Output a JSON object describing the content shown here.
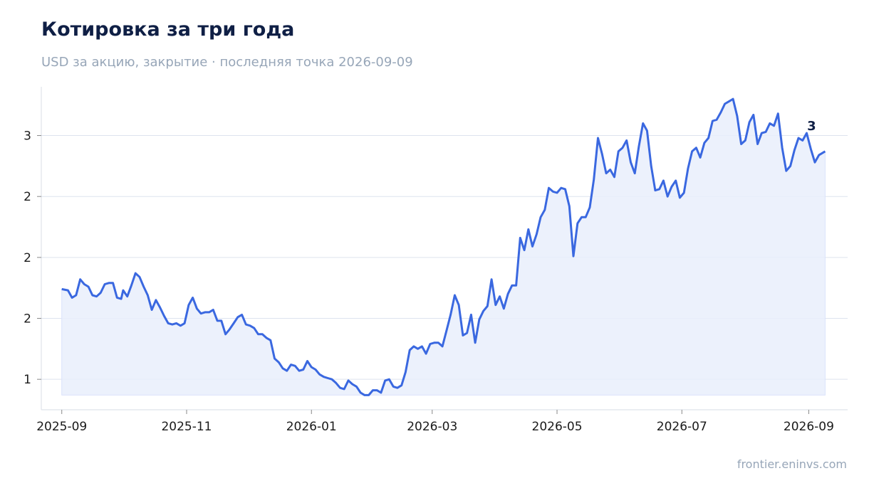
{
  "header": {
    "title": "Котировка за три года",
    "subtitle": "USD за акцию, закрытие · последняя точка 2026-09-09"
  },
  "footer": {
    "source": "frontier.eninvs.com"
  },
  "colors": {
    "line": "#3a68e0",
    "fill": "#e9eefc",
    "grid": "#dde3ee",
    "axis": "#dfe3ea",
    "text": "#1a1a1a"
  },
  "chart_data": {
    "type": "area",
    "title": "Котировка за три года",
    "subtitle": "USD за акцию, закрытие · последняя точка 2026-09-09",
    "xlabel": "",
    "ylabel": "",
    "grid": true,
    "legend": "none",
    "x_ticks": [
      "2025-09",
      "2025-11",
      "2026-01",
      "2026-03",
      "2026-05",
      "2026-07",
      "2026-09"
    ],
    "y_ticks": [
      {
        "value": 1.0,
        "label": "1"
      },
      {
        "value": 1.5,
        "label": "2"
      },
      {
        "value": 2.0,
        "label": "2"
      },
      {
        "value": 2.5,
        "label": "2"
      },
      {
        "value": 3.0,
        "label": "3"
      }
    ],
    "ylim": [
      0.75,
      3.4
    ],
    "xlim": [
      "2025-08-22",
      "2026-09-20"
    ],
    "end_label": "3",
    "series": [
      {
        "points": [
          [
            "2025-09-01",
            1.74
          ],
          [
            "2025-09-04",
            1.73
          ],
          [
            "2025-09-06",
            1.67
          ],
          [
            "2025-09-08",
            1.69
          ],
          [
            "2025-09-10",
            1.82
          ],
          [
            "2025-09-12",
            1.78
          ],
          [
            "2025-09-14",
            1.76
          ],
          [
            "2025-09-16",
            1.69
          ],
          [
            "2025-09-18",
            1.68
          ],
          [
            "2025-09-20",
            1.71
          ],
          [
            "2025-09-22",
            1.78
          ],
          [
            "2025-09-24",
            1.79
          ],
          [
            "2025-09-26",
            1.79
          ],
          [
            "2025-09-28",
            1.67
          ],
          [
            "2025-09-30",
            1.66
          ],
          [
            "2025-10-01",
            1.73
          ],
          [
            "2025-10-03",
            1.68
          ],
          [
            "2025-10-05",
            1.77
          ],
          [
            "2025-10-07",
            1.87
          ],
          [
            "2025-10-09",
            1.84
          ],
          [
            "2025-10-11",
            1.76
          ],
          [
            "2025-10-13",
            1.69
          ],
          [
            "2025-10-15",
            1.57
          ],
          [
            "2025-10-17",
            1.65
          ],
          [
            "2025-10-19",
            1.59
          ],
          [
            "2025-10-21",
            1.52
          ],
          [
            "2025-10-23",
            1.46
          ],
          [
            "2025-10-25",
            1.45
          ],
          [
            "2025-10-27",
            1.46
          ],
          [
            "2025-10-29",
            1.44
          ],
          [
            "2025-10-31",
            1.46
          ],
          [
            "2025-11-02",
            1.61
          ],
          [
            "2025-11-04",
            1.67
          ],
          [
            "2025-11-06",
            1.58
          ],
          [
            "2025-11-08",
            1.54
          ],
          [
            "2025-11-10",
            1.55
          ],
          [
            "2025-11-12",
            1.55
          ],
          [
            "2025-11-14",
            1.57
          ],
          [
            "2025-11-16",
            1.48
          ],
          [
            "2025-11-18",
            1.48
          ],
          [
            "2025-11-20",
            1.37
          ],
          [
            "2025-11-22",
            1.41
          ],
          [
            "2025-11-24",
            1.46
          ],
          [
            "2025-11-26",
            1.51
          ],
          [
            "2025-11-28",
            1.53
          ],
          [
            "2025-11-30",
            1.45
          ],
          [
            "2025-12-02",
            1.44
          ],
          [
            "2025-12-04",
            1.42
          ],
          [
            "2025-12-06",
            1.37
          ],
          [
            "2025-12-08",
            1.37
          ],
          [
            "2025-12-10",
            1.34
          ],
          [
            "2025-12-12",
            1.32
          ],
          [
            "2025-12-14",
            1.17
          ],
          [
            "2025-12-16",
            1.14
          ],
          [
            "2025-12-18",
            1.09
          ],
          [
            "2025-12-20",
            1.07
          ],
          [
            "2025-12-22",
            1.12
          ],
          [
            "2025-12-24",
            1.11
          ],
          [
            "2025-12-26",
            1.07
          ],
          [
            "2025-12-28",
            1.08
          ],
          [
            "2025-12-30",
            1.15
          ],
          [
            "2026-01-01",
            1.1
          ],
          [
            "2026-01-03",
            1.08
          ],
          [
            "2026-01-05",
            1.04
          ],
          [
            "2026-01-07",
            1.02
          ],
          [
            "2026-01-09",
            1.01
          ],
          [
            "2026-01-11",
            1.0
          ],
          [
            "2026-01-13",
            0.97
          ],
          [
            "2026-01-15",
            0.93
          ],
          [
            "2026-01-17",
            0.92
          ],
          [
            "2026-01-19",
            0.99
          ],
          [
            "2026-01-21",
            0.96
          ],
          [
            "2026-01-23",
            0.94
          ],
          [
            "2026-01-25",
            0.89
          ],
          [
            "2026-01-27",
            0.87
          ],
          [
            "2026-01-29",
            0.87
          ],
          [
            "2026-01-31",
            0.91
          ],
          [
            "2026-02-02",
            0.91
          ],
          [
            "2026-02-04",
            0.89
          ],
          [
            "2026-02-06",
            0.99
          ],
          [
            "2026-02-08",
            1.0
          ],
          [
            "2026-02-10",
            0.94
          ],
          [
            "2026-02-12",
            0.93
          ],
          [
            "2026-02-14",
            0.95
          ],
          [
            "2026-02-16",
            1.06
          ],
          [
            "2026-02-18",
            1.24
          ],
          [
            "2026-02-20",
            1.27
          ],
          [
            "2026-02-22",
            1.25
          ],
          [
            "2026-02-24",
            1.27
          ],
          [
            "2026-02-26",
            1.21
          ],
          [
            "2026-02-28",
            1.29
          ],
          [
            "2026-03-02",
            1.3
          ],
          [
            "2026-03-04",
            1.3
          ],
          [
            "2026-03-06",
            1.27
          ],
          [
            "2026-03-08",
            1.4
          ],
          [
            "2026-03-10",
            1.53
          ],
          [
            "2026-03-12",
            1.69
          ],
          [
            "2026-03-14",
            1.61
          ],
          [
            "2026-03-16",
            1.36
          ],
          [
            "2026-03-18",
            1.38
          ],
          [
            "2026-03-20",
            1.53
          ],
          [
            "2026-03-22",
            1.3
          ],
          [
            "2026-03-24",
            1.49
          ],
          [
            "2026-03-26",
            1.56
          ],
          [
            "2026-03-28",
            1.6
          ],
          [
            "2026-03-30",
            1.82
          ],
          [
            "2026-04-01",
            1.61
          ],
          [
            "2026-04-03",
            1.68
          ],
          [
            "2026-04-05",
            1.58
          ],
          [
            "2026-04-07",
            1.7
          ],
          [
            "2026-04-09",
            1.77
          ],
          [
            "2026-04-11",
            1.77
          ],
          [
            "2026-04-13",
            2.16
          ],
          [
            "2026-04-15",
            2.06
          ],
          [
            "2026-04-17",
            2.23
          ],
          [
            "2026-04-19",
            2.09
          ],
          [
            "2026-04-21",
            2.19
          ],
          [
            "2026-04-23",
            2.33
          ],
          [
            "2026-04-25",
            2.39
          ],
          [
            "2026-04-27",
            2.57
          ],
          [
            "2026-04-29",
            2.54
          ],
          [
            "2026-05-01",
            2.53
          ],
          [
            "2026-05-03",
            2.57
          ],
          [
            "2026-05-05",
            2.56
          ],
          [
            "2026-05-07",
            2.42
          ],
          [
            "2026-05-09",
            2.01
          ],
          [
            "2026-05-11",
            2.28
          ],
          [
            "2026-05-13",
            2.33
          ],
          [
            "2026-05-15",
            2.33
          ],
          [
            "2026-05-17",
            2.41
          ],
          [
            "2026-05-19",
            2.64
          ],
          [
            "2026-05-21",
            2.98
          ],
          [
            "2026-05-23",
            2.85
          ],
          [
            "2026-05-25",
            2.69
          ],
          [
            "2026-05-27",
            2.72
          ],
          [
            "2026-05-29",
            2.66
          ],
          [
            "2026-05-31",
            2.87
          ],
          [
            "2026-06-02",
            2.9
          ],
          [
            "2026-06-04",
            2.96
          ],
          [
            "2026-06-06",
            2.78
          ],
          [
            "2026-06-08",
            2.69
          ],
          [
            "2026-06-10",
            2.91
          ],
          [
            "2026-06-12",
            3.1
          ],
          [
            "2026-06-14",
            3.04
          ],
          [
            "2026-06-16",
            2.75
          ],
          [
            "2026-06-18",
            2.55
          ],
          [
            "2026-06-20",
            2.56
          ],
          [
            "2026-06-22",
            2.63
          ],
          [
            "2026-06-24",
            2.5
          ],
          [
            "2026-06-26",
            2.58
          ],
          [
            "2026-06-28",
            2.63
          ],
          [
            "2026-06-30",
            2.49
          ],
          [
            "2026-07-02",
            2.53
          ],
          [
            "2026-07-04",
            2.73
          ],
          [
            "2026-07-06",
            2.87
          ],
          [
            "2026-07-08",
            2.9
          ],
          [
            "2026-07-10",
            2.82
          ],
          [
            "2026-07-12",
            2.94
          ],
          [
            "2026-07-14",
            2.98
          ],
          [
            "2026-07-16",
            3.12
          ],
          [
            "2026-07-18",
            3.13
          ],
          [
            "2026-07-20",
            3.19
          ],
          [
            "2026-07-22",
            3.26
          ],
          [
            "2026-07-24",
            3.28
          ],
          [
            "2026-07-26",
            3.3
          ],
          [
            "2026-07-28",
            3.16
          ],
          [
            "2026-07-30",
            2.93
          ],
          [
            "2026-08-01",
            2.96
          ],
          [
            "2026-08-03",
            3.11
          ],
          [
            "2026-08-05",
            3.17
          ],
          [
            "2026-08-07",
            2.93
          ],
          [
            "2026-08-09",
            3.02
          ],
          [
            "2026-08-11",
            3.03
          ],
          [
            "2026-08-13",
            3.1
          ],
          [
            "2026-08-15",
            3.08
          ],
          [
            "2026-08-17",
            3.18
          ],
          [
            "2026-08-19",
            2.9
          ],
          [
            "2026-08-21",
            2.71
          ],
          [
            "2026-08-23",
            2.75
          ],
          [
            "2026-08-25",
            2.88
          ],
          [
            "2026-08-27",
            2.98
          ],
          [
            "2026-08-29",
            2.96
          ],
          [
            "2026-08-31",
            3.02
          ],
          [
            "2026-09-02",
            2.89
          ],
          [
            "2026-09-04",
            2.78
          ],
          [
            "2026-09-06",
            2.84
          ],
          [
            "2026-09-09",
            2.87
          ]
        ]
      }
    ]
  }
}
